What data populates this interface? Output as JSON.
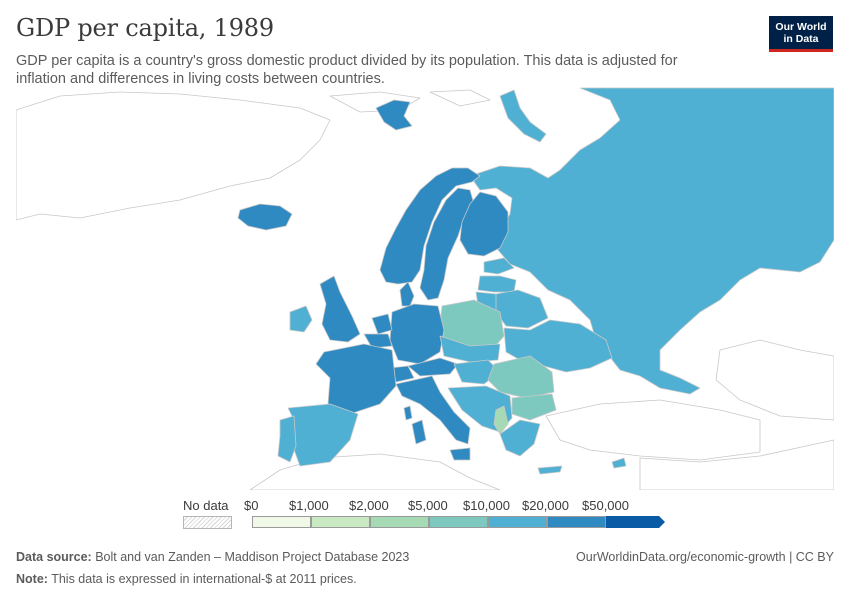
{
  "title": "GDP per capita, 1989",
  "subtitle": "GDP per capita is a country's gross domestic product divided by its population. This data is adjusted for inflation and differences in living costs between countries.",
  "logo": {
    "line1": "Our World",
    "line2": "in Data",
    "bg": "#002147",
    "accent": "#ce261e"
  },
  "legend": {
    "no_data_label": "No data",
    "ticks": [
      "$0",
      "$1,000",
      "$2,000",
      "$5,000",
      "$10,000",
      "$20,000",
      "$50,000"
    ],
    "colors": [
      "#f0f9e8",
      "#c9e9c2",
      "#a5dab5",
      "#7dc9c0",
      "#4fb0d3",
      "#2f8ac2",
      "#0a5ba6"
    ]
  },
  "map_colors": {
    "ocean": "#ffffff",
    "border": "#c8c8c8",
    "no_data": "#ffffff",
    "bin_10000_20000": "#4fb0d3",
    "bin_20000_50000": "#2f8ac2",
    "bin_5000_10000": "#7dc9c0",
    "bin_2000_5000": "#a5dab5"
  },
  "footer": {
    "source_label": "Data source:",
    "source_text": "Bolt and van Zanden – Maddison Project Database 2023",
    "note_label": "Note:",
    "note_text": "This data is expressed in international-$ at 2011 prices.",
    "right_text": "OurWorldinData.org/economic-growth | CC BY"
  }
}
